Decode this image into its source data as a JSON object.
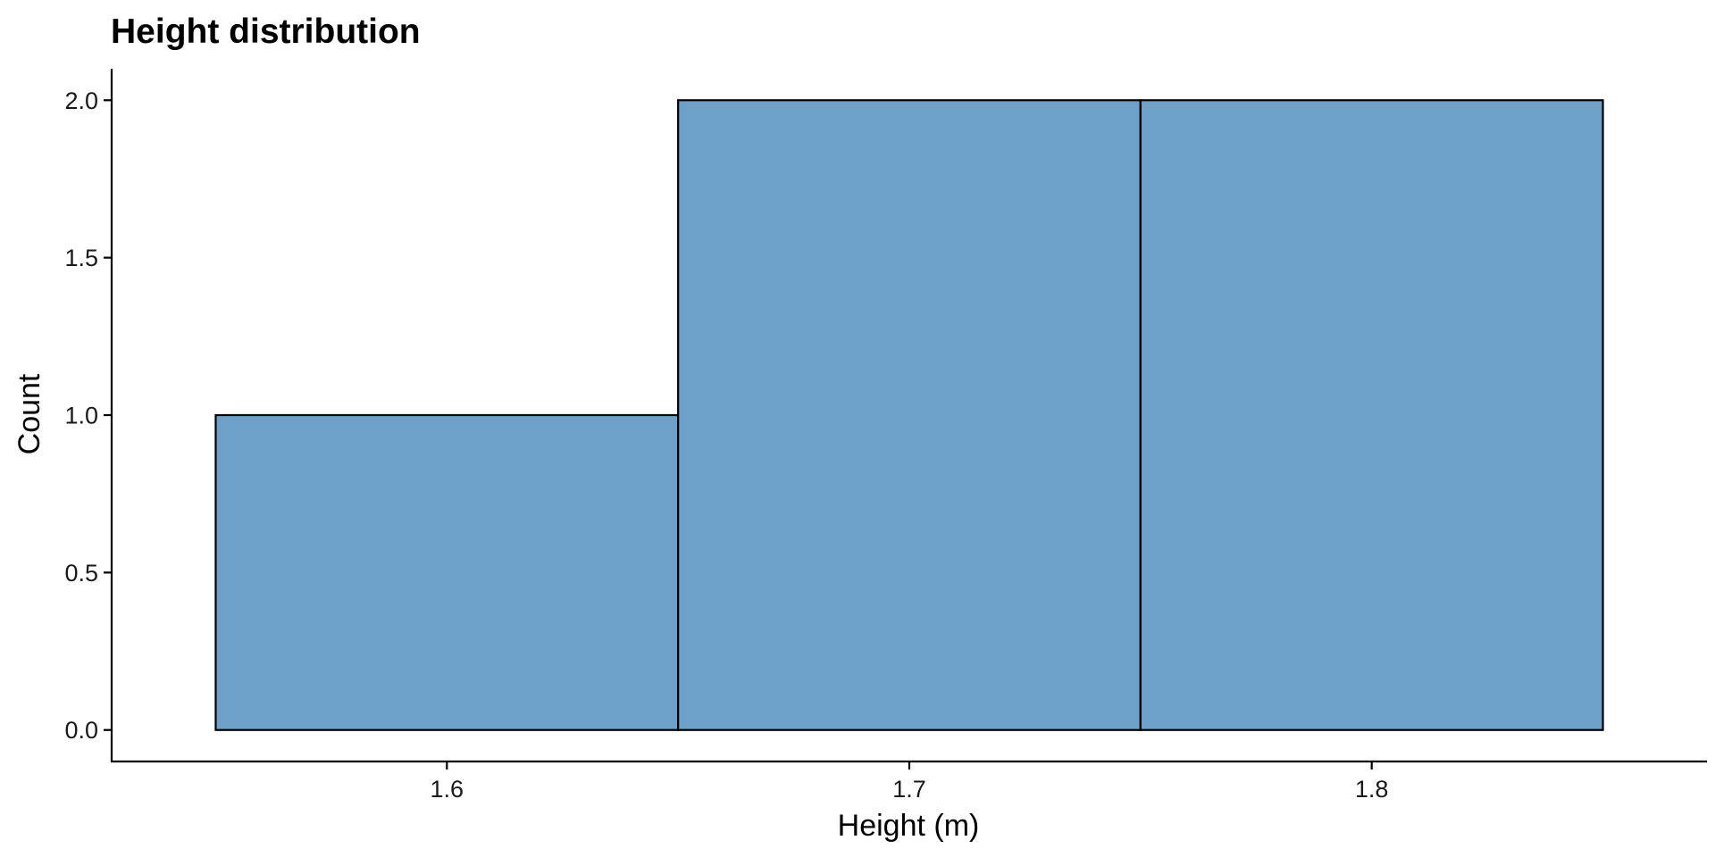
{
  "chart_data": {
    "type": "bar",
    "title": "Height distribution",
    "xlabel": "Height (m)",
    "ylabel": "Count",
    "bins": [
      {
        "x0": 1.55,
        "x1": 1.65,
        "value": 1
      },
      {
        "x0": 1.65,
        "x1": 1.75,
        "value": 2
      },
      {
        "x0": 1.75,
        "x1": 1.85,
        "value": 2
      }
    ],
    "xlim": [
      1.5275,
      1.8725
    ],
    "ylim": [
      -0.1,
      2.1
    ],
    "x_ticks": [
      {
        "value": 1.6,
        "label": "1.6"
      },
      {
        "value": 1.7,
        "label": "1.7"
      },
      {
        "value": 1.8,
        "label": "1.8"
      }
    ],
    "y_ticks": [
      {
        "value": 0.0,
        "label": "0.0"
      },
      {
        "value": 0.5,
        "label": "0.5"
      },
      {
        "value": 1.0,
        "label": "1.0"
      },
      {
        "value": 1.5,
        "label": "1.5"
      },
      {
        "value": 2.0,
        "label": "2.0"
      }
    ],
    "grid": false,
    "legend": "none",
    "bar_color": "#6ea1c9",
    "bar_edge_color": "#000000"
  }
}
